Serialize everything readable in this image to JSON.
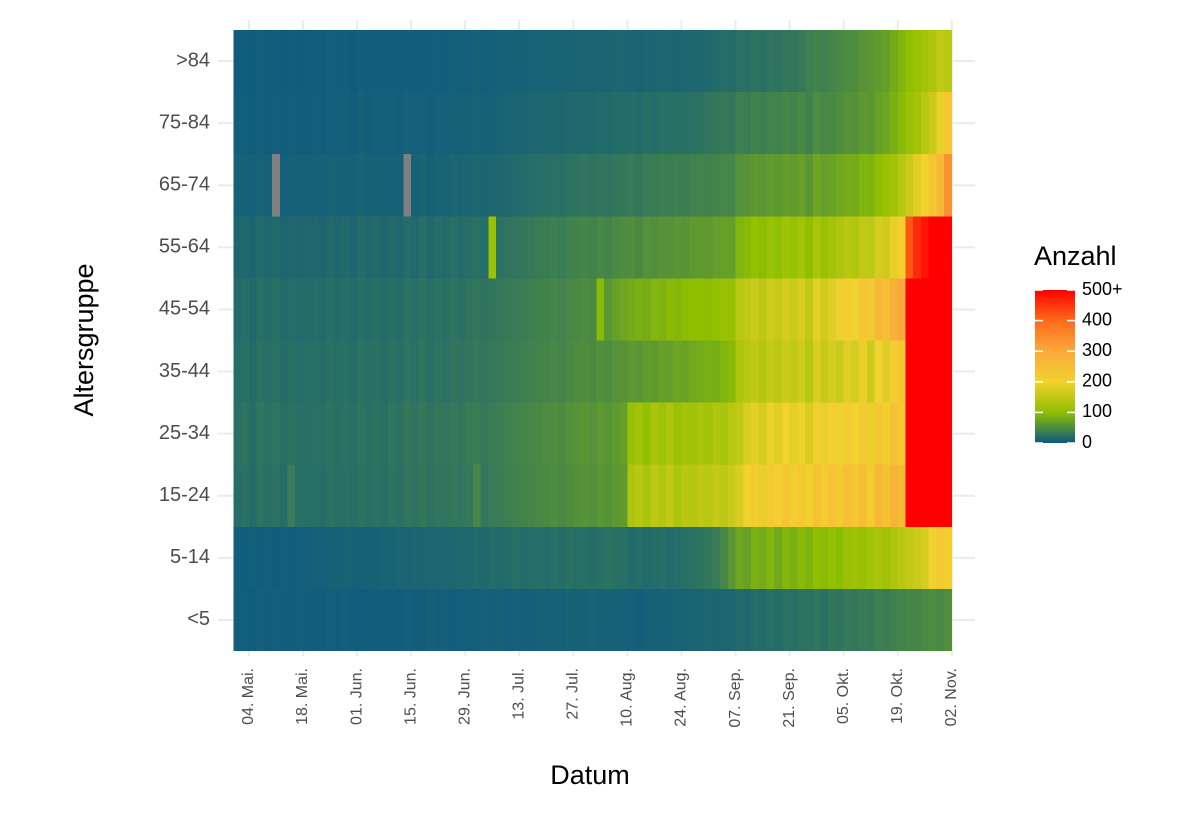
{
  "chart_data": {
    "type": "heatmap",
    "xlabel": "Datum",
    "ylabel": "Altersgruppe",
    "legend_title": "Anzahl",
    "x": [
      "04-30",
      "05-02",
      "05-04",
      "05-06",
      "05-08",
      "05-10",
      "05-12",
      "05-14",
      "05-16",
      "05-18",
      "05-20",
      "05-22",
      "05-24",
      "05-26",
      "05-28",
      "05-30",
      "06-01",
      "06-03",
      "06-05",
      "06-07",
      "06-09",
      "06-11",
      "06-13",
      "06-15",
      "06-17",
      "06-19",
      "06-21",
      "06-23",
      "06-25",
      "06-27",
      "06-29",
      "07-01",
      "07-03",
      "07-05",
      "07-07",
      "07-09",
      "07-11",
      "07-13",
      "07-15",
      "07-17",
      "07-19",
      "07-21",
      "07-23",
      "07-25",
      "07-27",
      "07-29",
      "07-31",
      "08-02",
      "08-04",
      "08-06",
      "08-08",
      "08-10",
      "08-12",
      "08-14",
      "08-16",
      "08-18",
      "08-20",
      "08-22",
      "08-24",
      "08-26",
      "08-28",
      "08-30",
      "09-01",
      "09-03",
      "09-05",
      "09-07",
      "09-09",
      "09-11",
      "09-13",
      "09-15",
      "09-17",
      "09-19",
      "09-21",
      "09-23",
      "09-25",
      "09-27",
      "09-29",
      "10-01",
      "10-03",
      "10-05",
      "10-07",
      "10-09",
      "10-11",
      "10-13",
      "10-15",
      "10-17",
      "10-19",
      "10-21",
      "10-23",
      "10-25",
      "10-27",
      "10-29",
      "10-31"
    ],
    "cell_days": 2,
    "categories": [
      "<5",
      "5-14",
      "15-24",
      "25-34",
      "35-44",
      "45-54",
      "55-64",
      "65-74",
      "75-84",
      ">84"
    ],
    "z": [
      [
        5,
        6,
        4,
        7,
        5,
        6,
        5,
        4,
        6,
        5,
        5,
        4,
        6,
        5,
        7,
        5,
        4,
        5,
        6,
        5,
        6,
        5,
        7,
        6,
        5,
        8,
        6,
        7,
        5,
        6,
        7,
        6,
        8,
        7,
        9,
        6,
        8,
        7,
        6,
        8,
        8,
        9,
        7,
        10,
        8,
        9,
        11,
        8,
        10,
        9,
        8,
        7,
        6,
        9,
        8,
        10,
        9,
        11,
        10,
        12,
        11,
        13,
        12,
        14,
        13,
        18,
        16,
        20,
        18,
        22,
        20,
        24,
        22,
        26,
        25,
        28,
        24,
        30,
        27,
        32,
        30,
        34,
        32,
        38,
        36,
        40,
        42,
        45,
        44,
        48,
        50,
        46,
        52
      ],
      [
        6,
        5,
        7,
        5,
        6,
        4,
        6,
        5,
        7,
        6,
        8,
        7,
        9,
        8,
        10,
        9,
        8,
        10,
        9,
        11,
        10,
        12,
        11,
        13,
        12,
        14,
        13,
        15,
        14,
        16,
        15,
        18,
        16,
        20,
        17,
        19,
        22,
        18,
        20,
        21,
        19,
        22,
        20,
        24,
        21,
        23,
        20,
        22,
        25,
        23,
        22,
        18,
        20,
        17,
        19,
        21,
        18,
        20,
        22,
        24,
        26,
        30,
        34,
        45,
        60,
        75,
        70,
        85,
        80,
        90,
        78,
        92,
        85,
        95,
        88,
        100,
        96,
        105,
        98,
        110,
        115,
        108,
        120,
        125,
        118,
        130,
        140,
        150,
        160,
        170,
        200,
        220,
        210
      ],
      [
        20,
        24,
        18,
        26,
        22,
        25,
        19,
        35,
        22,
        21,
        23,
        20,
        25,
        22,
        24,
        21,
        26,
        23,
        25,
        22,
        27,
        24,
        28,
        26,
        30,
        25,
        29,
        27,
        31,
        28,
        32,
        45,
        30,
        34,
        36,
        38,
        40,
        42,
        44,
        46,
        48,
        50,
        47,
        52,
        55,
        58,
        54,
        60,
        57,
        62,
        65,
        130,
        140,
        125,
        145,
        135,
        150,
        128,
        142,
        138,
        148,
        140,
        155,
        145,
        160,
        175,
        200,
        215,
        190,
        220,
        205,
        230,
        210,
        225,
        198,
        240,
        215,
        235,
        220,
        245,
        230,
        250,
        215,
        260,
        240,
        270,
        255,
        580,
        680,
        720,
        760,
        800,
        740
      ],
      [
        22,
        26,
        20,
        28,
        24,
        27,
        21,
        25,
        23,
        22,
        24,
        22,
        26,
        23,
        25,
        22,
        27,
        24,
        26,
        23,
        28,
        25,
        30,
        27,
        31,
        26,
        30,
        28,
        32,
        29,
        33,
        36,
        31,
        35,
        37,
        39,
        41,
        43,
        45,
        47,
        50,
        52,
        49,
        55,
        58,
        60,
        56,
        62,
        59,
        64,
        68,
        110,
        120,
        105,
        125,
        115,
        130,
        110,
        122,
        118,
        128,
        120,
        135,
        125,
        140,
        150,
        175,
        185,
        170,
        195,
        180,
        200,
        185,
        195,
        175,
        210,
        190,
        205,
        195,
        215,
        200,
        220,
        190,
        230,
        210,
        240,
        225,
        560,
        640,
        690,
        720,
        760,
        700
      ],
      [
        20,
        23,
        18,
        25,
        21,
        24,
        19,
        22,
        20,
        21,
        22,
        20,
        24,
        21,
        23,
        20,
        25,
        22,
        24,
        21,
        25,
        22,
        27,
        24,
        28,
        23,
        27,
        25,
        29,
        26,
        29,
        32,
        28,
        31,
        33,
        35,
        36,
        38,
        40,
        42,
        44,
        46,
        43,
        48,
        50,
        52,
        49,
        54,
        51,
        56,
        58,
        62,
        60,
        66,
        64,
        70,
        68,
        74,
        72,
        78,
        80,
        84,
        82,
        90,
        95,
        130,
        140,
        150,
        135,
        155,
        145,
        160,
        150,
        165,
        140,
        175,
        155,
        170,
        160,
        180,
        170,
        190,
        165,
        200,
        180,
        215,
        230,
        520,
        600,
        650,
        680,
        700,
        660
      ],
      [
        18,
        21,
        16,
        23,
        19,
        22,
        17,
        20,
        18,
        19,
        20,
        18,
        22,
        19,
        21,
        18,
        23,
        20,
        22,
        19,
        23,
        20,
        25,
        22,
        26,
        21,
        25,
        23,
        27,
        24,
        27,
        30,
        26,
        29,
        31,
        33,
        34,
        36,
        38,
        40,
        42,
        44,
        41,
        46,
        48,
        50,
        47,
        95,
        60,
        70,
        75,
        80,
        85,
        82,
        90,
        88,
        95,
        92,
        98,
        100,
        102,
        98,
        105,
        110,
        108,
        140,
        150,
        160,
        145,
        165,
        155,
        170,
        160,
        175,
        150,
        185,
        165,
        180,
        195,
        210,
        200,
        230,
        220,
        260,
        250,
        280,
        300,
        560,
        620,
        660,
        680,
        700,
        650
      ],
      [
        14,
        16,
        12,
        18,
        15,
        17,
        13,
        16,
        14,
        15,
        16,
        14,
        18,
        15,
        17,
        14,
        19,
        16,
        18,
        15,
        18,
        16,
        20,
        17,
        21,
        16,
        20,
        18,
        22,
        19,
        21,
        24,
        20,
        110,
        25,
        27,
        28,
        30,
        32,
        34,
        36,
        38,
        35,
        40,
        42,
        44,
        41,
        46,
        43,
        48,
        50,
        52,
        48,
        55,
        53,
        58,
        56,
        60,
        58,
        62,
        64,
        62,
        68,
        70,
        68,
        90,
        95,
        105,
        98,
        110,
        102,
        115,
        108,
        120,
        100,
        125,
        110,
        122,
        130,
        140,
        135,
        150,
        145,
        170,
        165,
        190,
        210,
        420,
        460,
        480,
        520,
        560,
        540
      ],
      [
        8,
        9,
        7,
        10,
        8,
        null,
        7,
        9,
        8,
        8,
        9,
        8,
        10,
        9,
        10,
        8,
        11,
        9,
        10,
        9,
        10,
        9,
        null,
        10,
        12,
        9,
        11,
        10,
        13,
        11,
        12,
        14,
        12,
        13,
        15,
        16,
        17,
        18,
        20,
        21,
        22,
        24,
        22,
        25,
        26,
        28,
        26,
        29,
        27,
        30,
        31,
        33,
        30,
        35,
        34,
        37,
        36,
        38,
        37,
        40,
        41,
        40,
        43,
        45,
        44,
        55,
        58,
        62,
        60,
        65,
        62,
        68,
        65,
        70,
        60,
        75,
        68,
        72,
        78,
        82,
        80,
        90,
        88,
        100,
        110,
        120,
        140,
        160,
        180,
        200,
        230,
        260,
        340
      ],
      [
        5,
        6,
        4,
        7,
        5,
        6,
        5,
        6,
        5,
        5,
        6,
        5,
        7,
        6,
        7,
        5,
        8,
        6,
        7,
        6,
        7,
        6,
        8,
        7,
        8,
        6,
        8,
        7,
        9,
        8,
        8,
        10,
        8,
        9,
        10,
        11,
        12,
        12,
        13,
        14,
        14,
        15,
        14,
        16,
        16,
        17,
        16,
        18,
        17,
        19,
        19,
        20,
        18,
        21,
        20,
        22,
        21,
        23,
        22,
        24,
        25,
        28,
        30,
        32,
        30,
        38,
        36,
        40,
        38,
        42,
        40,
        45,
        42,
        48,
        40,
        50,
        46,
        48,
        52,
        56,
        55,
        62,
        60,
        70,
        75,
        85,
        95,
        110,
        120,
        140,
        160,
        190,
        230
      ],
      [
        4,
        5,
        3,
        6,
        4,
        5,
        4,
        5,
        4,
        4,
        5,
        4,
        6,
        5,
        6,
        4,
        6,
        5,
        6,
        5,
        6,
        5,
        6,
        5,
        6,
        5,
        6,
        5,
        7,
        6,
        6,
        8,
        6,
        7,
        8,
        8,
        9,
        9,
        10,
        10,
        10,
        11,
        10,
        11,
        11,
        12,
        11,
        12,
        12,
        13,
        13,
        12,
        11,
        13,
        12,
        14,
        13,
        12,
        14,
        15,
        15,
        16,
        18,
        20,
        19,
        24,
        22,
        26,
        24,
        28,
        26,
        30,
        28,
        32,
        38,
        42,
        40,
        44,
        48,
        50,
        52,
        58,
        60,
        65,
        70,
        80,
        90,
        100,
        110,
        120,
        130,
        150,
        140
      ]
    ],
    "xlim": [
      "04-26",
      "11-08"
    ],
    "xticks": [
      {
        "value": "05-04",
        "label": "04. Mai."
      },
      {
        "value": "05-18",
        "label": "18. Mai."
      },
      {
        "value": "06-01",
        "label": "01. Jun."
      },
      {
        "value": "06-15",
        "label": "15. Jun."
      },
      {
        "value": "06-29",
        "label": "29. Jun."
      },
      {
        "value": "07-13",
        "label": "13. Jul."
      },
      {
        "value": "07-27",
        "label": "27. Jul."
      },
      {
        "value": "08-10",
        "label": "10. Aug."
      },
      {
        "value": "08-24",
        "label": "24. Aug."
      },
      {
        "value": "09-07",
        "label": "07. Sep."
      },
      {
        "value": "09-21",
        "label": "21. Sep."
      },
      {
        "value": "10-05",
        "label": "05. Okt."
      },
      {
        "value": "10-19",
        "label": "19. Okt."
      },
      {
        "value": "11-02",
        "label": "02. Nov."
      }
    ],
    "colorlim": [
      0,
      500
    ],
    "colorticks": [
      0,
      100,
      200,
      300,
      400,
      {
        "value": 500,
        "label": "500+"
      }
    ],
    "colorscale": [
      [
        0,
        "#0b5882"
      ],
      [
        100,
        "#8fbf00"
      ],
      [
        200,
        "#f2d22e"
      ],
      [
        300,
        "#f9a93b"
      ],
      [
        400,
        "#ff6a1a"
      ],
      [
        500,
        "#ff0000"
      ]
    ],
    "null_color": "#808080",
    "grid": true
  }
}
